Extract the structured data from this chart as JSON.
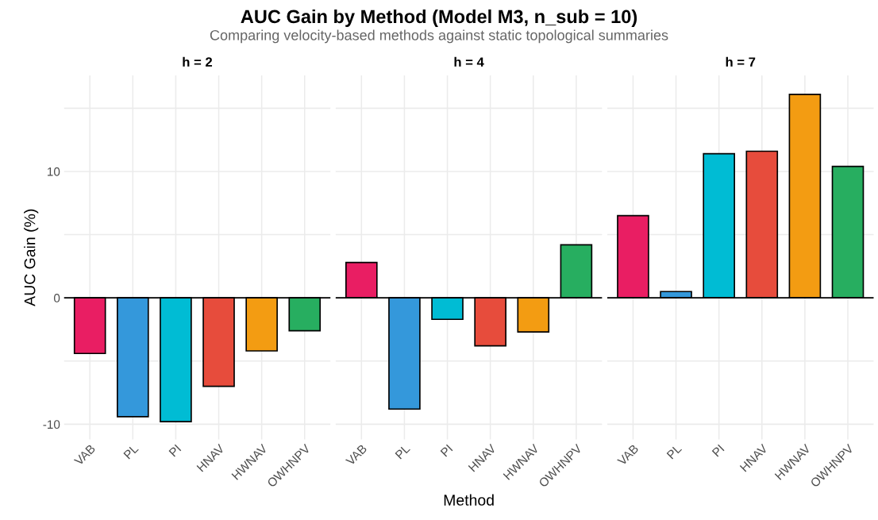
{
  "chart_data": [
    {
      "type": "bar",
      "title": "h = 2",
      "annotations": [
        "AUC Gain by Method (Model M3, n_sub = 10)",
        "Comparing velocity-based methods against static topological summaries"
      ],
      "ylabel": "AUC Gain (%)",
      "categories": [
        "VAB",
        "PL",
        "PI",
        "HNAV",
        "HWNAV",
        "OWHNPV"
      ],
      "values": [
        -4.4,
        -9.4,
        -9.8,
        -7.0,
        -4.2,
        -2.6
      ],
      "colors": [
        "#e91e63",
        "#3498db",
        "#00bcd4",
        "#e74c3c",
        "#f39c12",
        "#27ae60"
      ],
      "ylim": [
        -11.2,
        17.6
      ],
      "yticks": [
        -10,
        {
          "value": -5,
          "label": null
        },
        0,
        {
          "value": 5,
          "label": null
        },
        10,
        {
          "value": 15,
          "label": null
        }
      ],
      "grid": true,
      "ref_lines": [
        {
          "axis": "y",
          "value": 0,
          "color": "#000000"
        }
      ]
    },
    {
      "type": "bar",
      "title": "h = 4",
      "xlabel": "Method",
      "categories": [
        "VAB",
        "PL",
        "PI",
        "HNAV",
        "HWNAV",
        "OWHNPV"
      ],
      "values": [
        2.8,
        -8.8,
        -1.7,
        -3.8,
        -2.7,
        4.2
      ],
      "colors": [
        "#e91e63",
        "#3498db",
        "#00bcd4",
        "#e74c3c",
        "#f39c12",
        "#27ae60"
      ],
      "ylim": [
        -11.2,
        17.6
      ],
      "yticks": [
        -10,
        {
          "value": -5,
          "label": null
        },
        0,
        {
          "value": 5,
          "label": null
        },
        10,
        {
          "value": 15,
          "label": null
        }
      ],
      "grid": true,
      "tick_labels": "x",
      "ref_lines": [
        {
          "axis": "y",
          "value": 0,
          "color": "#000000"
        }
      ]
    },
    {
      "type": "bar",
      "title": "h = 7",
      "categories": [
        "VAB",
        "PL",
        "PI",
        "HNAV",
        "HWNAV",
        "OWHNPV"
      ],
      "values": [
        6.5,
        0.5,
        11.4,
        11.6,
        16.1,
        10.4
      ],
      "colors": [
        "#e91e63",
        "#3498db",
        "#00bcd4",
        "#e74c3c",
        "#f39c12",
        "#27ae60"
      ],
      "ylim": [
        -11.2,
        17.6
      ],
      "yticks": [
        -10,
        {
          "value": -5,
          "label": null
        },
        0,
        {
          "value": 5,
          "label": null
        },
        10,
        {
          "value": 15,
          "label": null
        }
      ],
      "grid": true,
      "tick_labels": "x",
      "ref_lines": [
        {
          "axis": "y",
          "value": 0,
          "color": "#000000"
        }
      ]
    }
  ]
}
